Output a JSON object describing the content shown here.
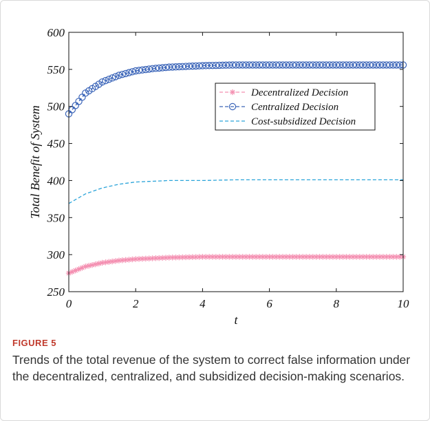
{
  "figure": {
    "label": "FIGURE 5",
    "caption": "Trends of the total revenue of the system to correct false information under the decentralized, centralized, and subsidized decision-making scenarios."
  },
  "colors": {
    "decentralized": "#f48fb1",
    "centralized": "#3a64b8",
    "cost_subsidized": "#29a3d9",
    "axis": "#111111"
  },
  "chart_data": {
    "type": "line",
    "xlabel": "t",
    "ylabel": "Total Benefit of System",
    "xlim": [
      0,
      10
    ],
    "ylim": [
      250,
      600
    ],
    "xticks": [
      0,
      2,
      4,
      6,
      8,
      10
    ],
    "yticks": [
      250,
      300,
      350,
      400,
      450,
      500,
      550,
      600
    ],
    "grid": false,
    "legend_position": "upper-right",
    "series": [
      {
        "name": "Decentralized Decision",
        "key": "decentralized",
        "line_style": "dashed",
        "marker": "asterisk",
        "x": [
          0,
          0.5,
          1,
          1.5,
          2,
          2.5,
          3,
          4,
          5,
          6,
          7,
          8,
          9,
          10
        ],
        "y": [
          275,
          284,
          289,
          292,
          294,
          295,
          296,
          297,
          297,
          297,
          297,
          297,
          297,
          297
        ]
      },
      {
        "name": "Centralized Decision",
        "key": "centralized",
        "line_style": "dashed",
        "marker": "circle",
        "x": [
          0,
          0.5,
          1,
          1.5,
          2,
          2.5,
          3,
          4,
          5,
          6,
          7,
          8,
          9,
          10
        ],
        "y": [
          490,
          518,
          533,
          542,
          548,
          551,
          553,
          555,
          556,
          556,
          556,
          556,
          556,
          556
        ]
      },
      {
        "name": "Cost-subsidized Decision",
        "key": "cost_subsidized",
        "line_style": "dashed",
        "marker": "none",
        "x": [
          0,
          0.5,
          1,
          1.5,
          2,
          2.5,
          3,
          4,
          5,
          6,
          7,
          8,
          9,
          10
        ],
        "y": [
          369,
          382,
          390,
          395,
          398,
          399,
          400,
          400,
          401,
          401,
          401,
          401,
          401,
          401
        ]
      }
    ]
  }
}
